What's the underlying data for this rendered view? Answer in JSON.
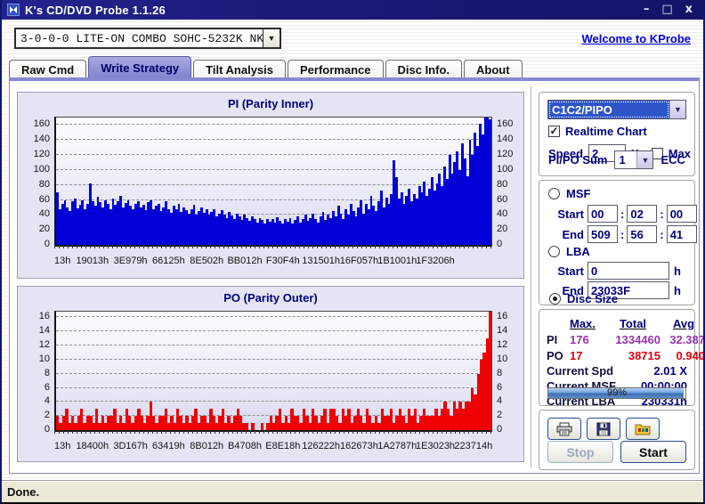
{
  "window": {
    "title": "K's CD/DVD Probe 1.1.26",
    "controls": {
      "minimize": "–",
      "maximize": "□",
      "close": "x"
    }
  },
  "drive_bar": {
    "selected_drive": "3-0-0-0 LITE-ON COMBO SOHC-5232K NK07",
    "link": "Welcome to KProbe"
  },
  "tabs": [
    {
      "label": "Raw Cmd"
    },
    {
      "label": "Write Strategy",
      "active": true
    },
    {
      "label": "Tilt Analysis"
    },
    {
      "label": "Performance"
    },
    {
      "label": "Disc Info."
    },
    {
      "label": "About"
    }
  ],
  "right_panel": {
    "mode_selected": "C1C2/PIPO",
    "realtime_label": "Realtime Chart",
    "realtime_checked": "✓",
    "speed_label": "Speed",
    "speed_value": "2",
    "speed_unit": "X",
    "max_label": "Max",
    "pipo_sum_label": "PI/PO Sum",
    "pipo_sum_value": "1",
    "ecc_label": "ECC",
    "msf": {
      "label": "MSF",
      "start_label": "Start",
      "end_label": "End",
      "sep": ":",
      "start": [
        "00",
        "02",
        "00"
      ],
      "end": [
        "509",
        "56",
        "41"
      ]
    },
    "lba": {
      "label": "LBA",
      "start_label": "Start",
      "end_label": "End",
      "unit": "h",
      "start": "0",
      "end": "23033F"
    },
    "disc_size_label": "Disc Size",
    "stats": {
      "headers": [
        "Max.",
        "Total",
        "Avg"
      ],
      "pi": {
        "label": "PI",
        "max": "176",
        "total": "1334460",
        "avg": "32.387"
      },
      "po": {
        "label": "PO",
        "max": "17",
        "total": "38715",
        "avg": "0.940"
      },
      "current": [
        {
          "label": "Current Spd",
          "value": "2.01  X"
        },
        {
          "label": "Current MSF",
          "value": "00:00:00"
        },
        {
          "label": "Current LBA",
          "value": "230331h"
        }
      ],
      "progress_label": "99%",
      "progress_pct": 99
    },
    "icon_buttons": [
      "print",
      "save",
      "export-image"
    ],
    "stop_label": "Stop",
    "start_label": "Start"
  },
  "status": "Done.",
  "chart_data": [
    {
      "type": "bar",
      "title": "PI (Parity Inner)",
      "bar_color": "#0000d6",
      "ymax": 170,
      "yticks": [
        0,
        20,
        40,
        60,
        80,
        100,
        120,
        140,
        160
      ],
      "x_tick_labels": [
        "13h",
        "19013h",
        "3E979h",
        "66125h",
        "8E502h",
        "BB012h",
        "F30F4h",
        "131501h",
        "16F057h",
        "1B1001h",
        "1F3206h"
      ],
      "x_step_pct": 8.7,
      "grid": true,
      "values": [
        70,
        48,
        55,
        60,
        50,
        45,
        58,
        62,
        49,
        53,
        60,
        47,
        55,
        82,
        58,
        52,
        64,
        57,
        50,
        60,
        55,
        48,
        62,
        53,
        58,
        65,
        50,
        56,
        60,
        52,
        47,
        55,
        58,
        50,
        53,
        46,
        57,
        60,
        48,
        52,
        55,
        45,
        50,
        58,
        47,
        43,
        52,
        48,
        55,
        44,
        50,
        46,
        42,
        48,
        53,
        40,
        45,
        50,
        43,
        47,
        41,
        44,
        48,
        38,
        42,
        46,
        40,
        36,
        44,
        39,
        35,
        42,
        38,
        33,
        40,
        36,
        32,
        38,
        35,
        30,
        36,
        33,
        29,
        35,
        31,
        34,
        30,
        37,
        32,
        28,
        35,
        31,
        36,
        29,
        33,
        38,
        30,
        34,
        40,
        32,
        36,
        42,
        35,
        30,
        38,
        44,
        33,
        40,
        36,
        45,
        38,
        52,
        42,
        35,
        48,
        40,
        55,
        45,
        38,
        50,
        60,
        42,
        55,
        48,
        65,
        52,
        45,
        58,
        72,
        50,
        63,
        55,
        68,
        113,
        90,
        62,
        70,
        55,
        65,
        75,
        58,
        68,
        62,
        78,
        70,
        85,
        65,
        75,
        90,
        72,
        82,
        95,
        78,
        105,
        88,
        120,
        95,
        110,
        125,
        100,
        135,
        115,
        92,
        140,
        120,
        150,
        132,
        162,
        148,
        170,
        176,
        168
      ]
    },
    {
      "type": "bar",
      "title": "PO (Parity Outer)",
      "bar_color": "#ee0000",
      "ymax": 16.8,
      "yticks": [
        0,
        2,
        4,
        6,
        8,
        10,
        12,
        14,
        16
      ],
      "x_tick_labels": [
        "13h",
        "18400h",
        "3D167h",
        "63419h",
        "8B012h",
        "B4708h",
        "E8E18h",
        "126222h",
        "162673h",
        "1A2787h",
        "1E3023h",
        "223714h"
      ],
      "x_step_pct": 8.7,
      "grid": true,
      "values": [
        2,
        1,
        2,
        3,
        1,
        2,
        1,
        2,
        3,
        1,
        2,
        2,
        1,
        3,
        1,
        2,
        1,
        2,
        2,
        3,
        1,
        2,
        1,
        3,
        2,
        1,
        2,
        3,
        2,
        1,
        2,
        4,
        2,
        1,
        2,
        2,
        3,
        1,
        2,
        1,
        3,
        2,
        1,
        2,
        1,
        2,
        3,
        1,
        2,
        2,
        1,
        3,
        2,
        1,
        2,
        3,
        1,
        2,
        1,
        2,
        3,
        2,
        1,
        1,
        0,
        1,
        0,
        0,
        1,
        0,
        1,
        2,
        1,
        2,
        3,
        1,
        2,
        1,
        3,
        2,
        2,
        1,
        3,
        2,
        1,
        3,
        2,
        1,
        2,
        3,
        1,
        3,
        3,
        2,
        1,
        3,
        2,
        3,
        1,
        2,
        3,
        2,
        1,
        3,
        2,
        1,
        2,
        1,
        3,
        2,
        2,
        3,
        1,
        2,
        3,
        2,
        1,
        3,
        2,
        3,
        1,
        2,
        3,
        2,
        2,
        2,
        3,
        2,
        3,
        4,
        3,
        2,
        4,
        3,
        4,
        3,
        4,
        4,
        6,
        5,
        8,
        10,
        11,
        13,
        17
      ]
    }
  ]
}
